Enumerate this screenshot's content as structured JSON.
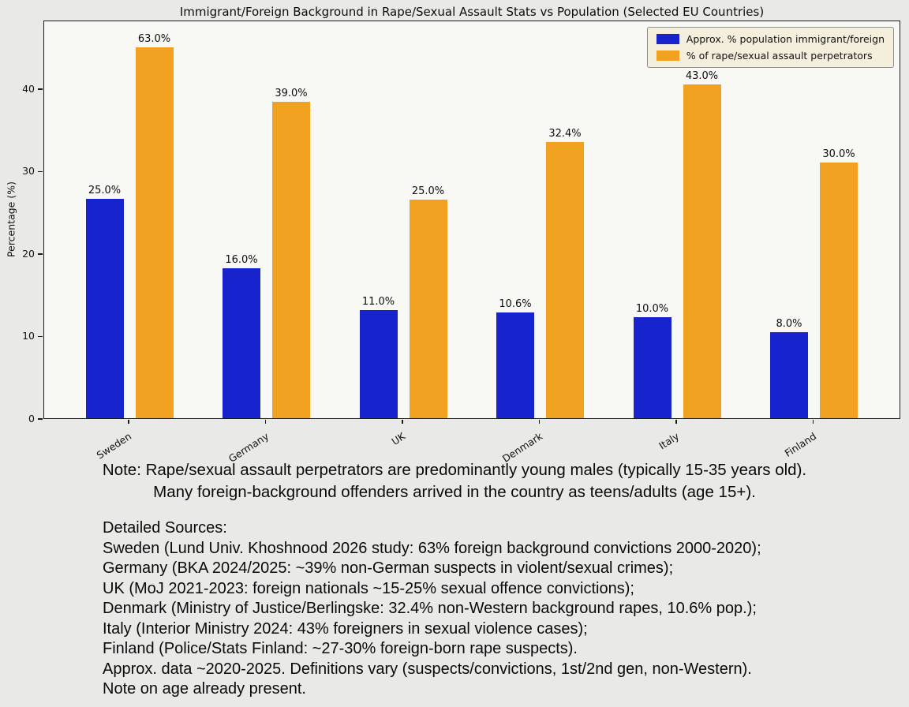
{
  "chart_data": {
    "type": "bar",
    "title": "Immigrant/Foreign Background in Rape/Sexual Assault Stats vs Population (Selected EU Countries)",
    "ylabel": "Percentage (%)",
    "categories": [
      "Sweden",
      "Germany",
      "UK",
      "Denmark",
      "Italy",
      "Finland"
    ],
    "series": [
      {
        "name": "Approx. % population immigrant/foreign",
        "color": "#1723cd",
        "values": [
          25.0,
          16.0,
          11.0,
          10.6,
          10.0,
          8.0
        ],
        "display_values": [
          26.6,
          18.2,
          13.1,
          12.8,
          12.2,
          10.4
        ]
      },
      {
        "name": "% of rape/sexual assault perpetrators",
        "color": "#efa11f",
        "values": [
          63.0,
          39.0,
          25.0,
          32.4,
          43.0,
          30.0
        ],
        "display_values": [
          45.0,
          38.4,
          26.5,
          33.5,
          40.5,
          31.0
        ]
      }
    ],
    "bar_label_suffix": "%",
    "yticks": [
      0,
      10,
      20,
      30,
      40
    ],
    "ylim": [
      0,
      48.3
    ],
    "grid": false,
    "legend_position": "upper right"
  },
  "notes": {
    "line1": "Note: Rape/sexual assault perpetrators are predominantly young males (typically 15-35 years old).",
    "line2": "Many foreign-background offenders arrived in the country as teens/adults (age 15+)."
  },
  "sources": {
    "heading": "Detailed Sources:",
    "lines": [
      "Sweden (Lund Univ. Khoshnood 2026 study: 63% foreign background convictions 2000-2020);",
      "Germany (BKA 2024/2025: ~39% non-German suspects in violent/sexual crimes);",
      "UK (MoJ 2021-2023: foreign nationals ~15-25% sexual offence convictions);",
      "Denmark (Ministry of Justice/Berlingske: 32.4% non-Western background rapes, 10.6% pop.);",
      "Italy (Interior Ministry 2024: 43% foreigners in sexual violence cases);",
      "Finland (Police/Stats Finland: ~27-30% foreign-born rape suspects).",
      "Approx. data ~2020-2025. Definitions vary (suspects/convictions, 1st/2nd gen, non-Western).",
      "Note on age already present."
    ]
  }
}
